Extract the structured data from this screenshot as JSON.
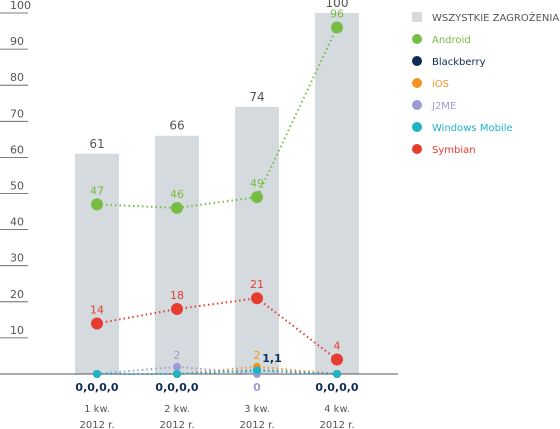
{
  "chart_data": {
    "type": "bar",
    "categories": [
      [
        "1 kw.",
        "2012 r."
      ],
      [
        "2 kw.",
        "2012 r."
      ],
      [
        "3 kw.",
        "2012 r."
      ],
      [
        "4 kw.",
        "2012 r."
      ]
    ],
    "bars": {
      "name": "WSZYSTKIE ZAGROŻENIA",
      "color": "#d5dadf",
      "values": [
        61,
        66,
        74,
        100
      ]
    },
    "series": [
      {
        "name": "Android",
        "color": "#77bc43",
        "values": [
          47,
          46,
          49,
          96
        ]
      },
      {
        "name": "Blackberry",
        "color": "#0e2c55",
        "values": [
          0,
          0,
          1,
          0
        ]
      },
      {
        "name": "iOS",
        "color": "#f5941f",
        "values": [
          0,
          0,
          2,
          0
        ]
      },
      {
        "name": "J2ME",
        "color": "#9d9cd2",
        "values": [
          0,
          2,
          0,
          0
        ]
      },
      {
        "name": "Windows Mobile",
        "color": "#1db4c4",
        "values": [
          0,
          0,
          1,
          0
        ]
      },
      {
        "name": "Symbian",
        "color": "#e53d2f",
        "values": [
          14,
          18,
          21,
          4
        ]
      }
    ],
    "annotations": [
      "0,0,0,0",
      "0,0,0,0",
      "0",
      "0,0,0,0",
      "1,1"
    ],
    "ylim": [
      0,
      100
    ],
    "yticks": [
      10,
      20,
      30,
      40,
      50,
      60,
      70,
      80,
      90,
      100
    ]
  }
}
